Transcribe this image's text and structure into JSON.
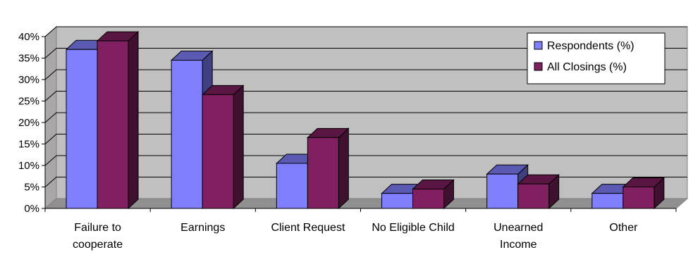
{
  "chart_data": {
    "type": "bar",
    "title": "",
    "xlabel": "",
    "ylabel": "",
    "categories": [
      [
        "Failure to",
        "cooperate"
      ],
      [
        "Earnings"
      ],
      [
        "Client Request"
      ],
      [
        "No Eligible Child"
      ],
      [
        "Unearned",
        "Income"
      ],
      [
        "Other"
      ]
    ],
    "series": [
      {
        "name": "Respondents (%)",
        "values": [
          37,
          34.5,
          10.5,
          3.5,
          8,
          3.5
        ],
        "color": "#8080FF"
      },
      {
        "name": "All Closings (%)",
        "values": [
          39,
          26.5,
          16.5,
          4.5,
          5.7,
          5
        ],
        "color": "#802060"
      }
    ],
    "ylim": [
      0,
      40
    ],
    "yticks": [
      "0%",
      "5%",
      "10%",
      "15%",
      "20%",
      "25%",
      "30%",
      "35%",
      "40%"
    ],
    "grid": true,
    "legend_position": "right",
    "style": "3d-clustered-column"
  }
}
